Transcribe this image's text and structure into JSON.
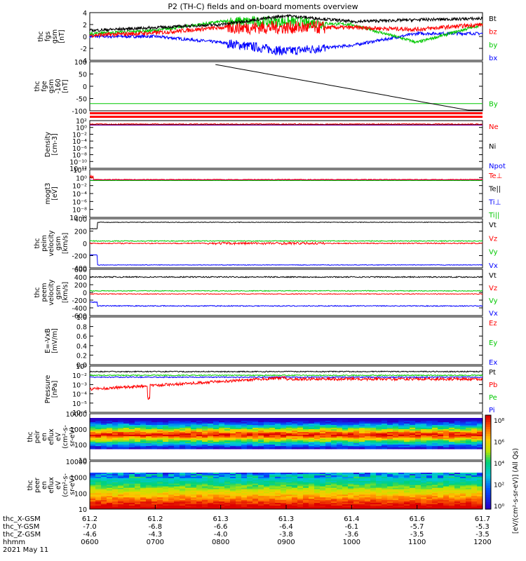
{
  "title": "P2 (TH-C) fields and on-board moments overview",
  "colors": {
    "black": "#000000",
    "red": "#ff0000",
    "green": "#00c800",
    "blue": "#0000ff"
  },
  "panels": [
    {
      "id": "fgs",
      "ylabel": [
        "thc",
        "fgs",
        "gsm",
        "[nT]"
      ],
      "ticks": [
        "4",
        "2",
        "0",
        "-2",
        "-4"
      ],
      "legend": [
        {
          "label": "Bt",
          "color": "black"
        },
        {
          "label": "bz",
          "color": "red"
        },
        {
          "label": "by",
          "color": "green"
        },
        {
          "label": "bx",
          "color": "blue"
        }
      ]
    },
    {
      "id": "fge",
      "ylabel": [
        "thc",
        "fge",
        "gsm",
        "-160",
        "[nT]"
      ],
      "ticks": [
        "100",
        "50",
        "0",
        "-50",
        "-100"
      ],
      "legend": [
        {
          "label": "By",
          "color": "green"
        }
      ]
    },
    {
      "id": "density",
      "ylabel": [
        "Density",
        "[cm-3]"
      ],
      "ticks": [
        "10²",
        "10⁰",
        "10⁻²",
        "10⁻⁴",
        "10⁻⁶",
        "10⁻⁸",
        "10⁻¹⁰",
        "10⁻¹²"
      ],
      "legend": [
        {
          "label": "Ne",
          "color": "red"
        },
        {
          "label": "Ni",
          "color": "black"
        },
        {
          "label": "Npot",
          "color": "blue"
        }
      ]
    },
    {
      "id": "temp",
      "ylabel": [
        "mogt3",
        "[eV]"
      ],
      "ticks": [
        "10¹²",
        "10⁰",
        "10⁻²",
        "10⁻⁴",
        "10⁻⁶",
        "10⁻⁸",
        "10⁻¹⁰"
      ],
      "legend": [
        {
          "label": "Te⊥",
          "color": "red"
        },
        {
          "label": "Te||",
          "color": "black"
        },
        {
          "label": "Ti⊥",
          "color": "blue"
        },
        {
          "label": "Ti||",
          "color": "green"
        }
      ]
    },
    {
      "id": "peim",
      "ylabel": [
        "thc",
        "peim",
        "velocity",
        "gsm",
        "[km/s]"
      ],
      "ticks": [
        "400",
        "200",
        "0",
        "-200",
        "-400"
      ],
      "legend": [
        {
          "label": "Vt",
          "color": "black"
        },
        {
          "label": "Vz",
          "color": "red"
        },
        {
          "label": "Vy",
          "color": "green"
        },
        {
          "label": "Vx",
          "color": "blue"
        }
      ]
    },
    {
      "id": "peem",
      "ylabel": [
        "thc",
        "peem",
        "velocity",
        "gsm",
        "[km/s]"
      ],
      "ticks": [
        "600",
        "400",
        "200",
        "0",
        "-200",
        "-400",
        "-600"
      ],
      "legend": [
        {
          "label": "Vt",
          "color": "black"
        },
        {
          "label": "Vz",
          "color": "red"
        },
        {
          "label": "Vy",
          "color": "green"
        },
        {
          "label": "Vx",
          "color": "blue"
        }
      ]
    },
    {
      "id": "efield",
      "ylabel": [
        "E=-VxB",
        "[mV/m]"
      ],
      "ticks": [
        "1.0",
        "0.8",
        "0.6",
        "0.4",
        "0.2",
        "0.0"
      ],
      "legend": [
        {
          "label": "Ez",
          "color": "red"
        },
        {
          "label": "Ey",
          "color": "green"
        },
        {
          "label": "Ex",
          "color": "blue"
        }
      ]
    },
    {
      "id": "pressure",
      "ylabel": [
        "Pressure",
        "[nPa]"
      ],
      "ticks": [
        "10⁰",
        "10⁻²",
        "10⁻³",
        "10⁻⁴",
        "10⁻⁵",
        "10⁻⁶"
      ],
      "legend": [
        {
          "label": "Pt",
          "color": "black"
        },
        {
          "label": "Pb",
          "color": "red"
        },
        {
          "label": "Pe",
          "color": "green"
        },
        {
          "label": "Pi",
          "color": "blue"
        }
      ]
    },
    {
      "id": "peir",
      "ylabel": [
        "thc",
        "peir",
        "en",
        "eflux",
        "eV",
        "(cm²-s-",
        "sr-eV)"
      ],
      "ticks": [
        "10000",
        "1000",
        "100",
        "10"
      ],
      "legend": []
    },
    {
      "id": "peer",
      "ylabel": [
        "thc",
        "peer",
        "en",
        "eflux",
        "eV",
        "(cm²-s-",
        "sr-eV)"
      ],
      "ticks": [
        "10000",
        "1000",
        "100",
        "10"
      ],
      "legend": []
    }
  ],
  "colorbar": {
    "ticks": [
      "10⁸",
      "10⁶",
      "10⁴",
      "10²",
      "10⁰"
    ],
    "label": "[eV/(cm²-s-sr-eV)] (All Qs)"
  },
  "xaxis": {
    "rows": [
      {
        "label": "thc_X-GSM",
        "values": [
          "61.2",
          "61.2",
          "61.3",
          "61.3",
          "61.4",
          "61.6",
          "61.7"
        ]
      },
      {
        "label": "thc_Y-GSM",
        "values": [
          "-7.0",
          "-6.8",
          "-6.6",
          "-6.4",
          "-6.1",
          "-5.7",
          "-5.3"
        ]
      },
      {
        "label": "thc_Z-GSM",
        "values": [
          "-4.6",
          "-4.3",
          "-4.0",
          "-3.8",
          "-3.6",
          "-3.5",
          "-3.5"
        ]
      },
      {
        "label": "hhmm",
        "values": [
          "0600",
          "0700",
          "0800",
          "0900",
          "1000",
          "1100",
          "1200"
        ]
      }
    ],
    "date": "2021 May 11"
  },
  "chart_data": {
    "type": "line",
    "x": [
      "0600",
      "0700",
      "0800",
      "0900",
      "1000",
      "1100",
      "1200"
    ],
    "fgs_bt": [
      1.0,
      1.5,
      2.0,
      3.5,
      2.5,
      2.8,
      3.0
    ],
    "fgs_bz": [
      0.2,
      0.6,
      1.5,
      1.5,
      1.5,
      1.2,
      2.0
    ],
    "fgs_by": [
      0.5,
      1.0,
      2.5,
      2.5,
      2.0,
      -1.0,
      2.0
    ],
    "fgs_bx": [
      0.0,
      0.0,
      -1.0,
      -2.5,
      -1.5,
      0.5,
      0.5
    ],
    "fge_black": [
      null,
      null,
      100,
      60,
      20,
      -20,
      -110
    ],
    "fge_by": [
      -75,
      -75,
      -75,
      -75,
      -75,
      -75,
      -75
    ],
    "peim_vt": [
      350,
      350,
      350,
      350,
      350,
      350,
      350
    ],
    "peim_vx": [
      -380,
      -380,
      -380,
      -380,
      -380,
      -380,
      -380
    ],
    "peem_vt": [
      400,
      400,
      400,
      400,
      400,
      400,
      400
    ],
    "peem_vx": [
      -350,
      -350,
      -350,
      -350,
      -350,
      -350,
      -350
    ]
  }
}
